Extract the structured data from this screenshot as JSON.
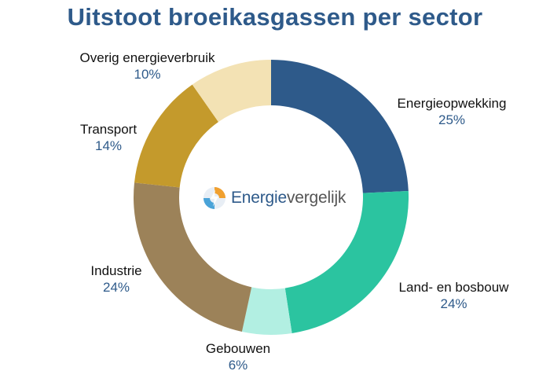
{
  "chart_data": {
    "type": "pie",
    "donut": true,
    "title": "Uitstoot broeikasgassen per sector",
    "slices": [
      {
        "label": "Energieopwekking",
        "value": 25,
        "value_label": "25%",
        "color": "#2e5a8a"
      },
      {
        "label": "Land- en bosbouw",
        "value": 24,
        "value_label": "24%",
        "color": "#2bc4a0"
      },
      {
        "label": "Gebouwen",
        "value": 6,
        "value_label": "6%",
        "color": "#b2efe2"
      },
      {
        "label": "Industrie",
        "value": 24,
        "value_label": "24%",
        "color": "#9c8259"
      },
      {
        "label": "Transport",
        "value": 14,
        "value_label": "14%",
        "color": "#c49a2c"
      },
      {
        "label": "Overig energieverbruik",
        "value": 10,
        "value_label": "10%",
        "color": "#f3e2b4"
      }
    ],
    "start_angle_deg": 0,
    "direction": "clockwise"
  },
  "logo": {
    "text_part1": "Energie",
    "text_part2": "vergelijk",
    "colors": {
      "primary": "#2e5a8a",
      "secondary": "#555555",
      "accent_orange": "#f0a030",
      "accent_blue": "#4aa3d8"
    }
  }
}
